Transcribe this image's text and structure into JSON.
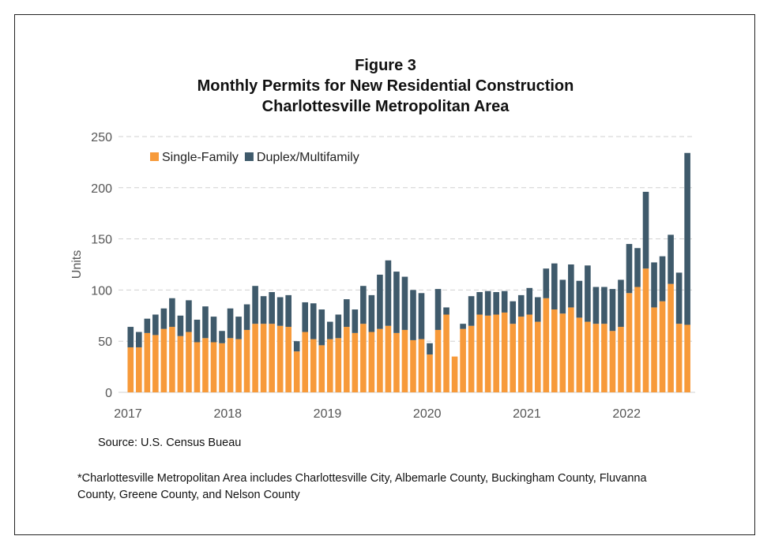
{
  "chart_data": {
    "type": "bar",
    "stacked": true,
    "title": "Figure 3",
    "subtitle": [
      "Monthly Permits for New Residential Construction",
      "Charlottesville Metropolitan Area"
    ],
    "ylabel": "Units",
    "ylim": [
      0,
      250
    ],
    "yticks": [
      0,
      50,
      100,
      150,
      200,
      250
    ],
    "xticks": [
      "2017",
      "2018",
      "2019",
      "2020",
      "2021",
      "2022"
    ],
    "grid": "horizontal dashed",
    "legend": "top-left",
    "start_month": "2017-01",
    "series": [
      {
        "name": "Single-Family",
        "color": "#F79A3A",
        "values": [
          44,
          44,
          58,
          56,
          62,
          64,
          55,
          59,
          49,
          53,
          49,
          48,
          53,
          52,
          61,
          67,
          67,
          67,
          65,
          64,
          40,
          59,
          52,
          46,
          52,
          53,
          64,
          58,
          67,
          59,
          62,
          65,
          58,
          61,
          51,
          52,
          37,
          61,
          76,
          35,
          62,
          65,
          76,
          75,
          76,
          78,
          67,
          74,
          76,
          69,
          92,
          81,
          77,
          83,
          73,
          69,
          67,
          67,
          60,
          64,
          97,
          103,
          121,
          83,
          89,
          106,
          67,
          66
        ]
      },
      {
        "name": "Duplex/Multifamily",
        "color": "#3F5A6B",
        "values": [
          20,
          15,
          14,
          20,
          20,
          28,
          20,
          31,
          22,
          31,
          25,
          12,
          29,
          22,
          25,
          37,
          27,
          31,
          28,
          31,
          10,
          29,
          35,
          35,
          17,
          23,
          27,
          23,
          37,
          36,
          53,
          64,
          60,
          52,
          49,
          45,
          11,
          40,
          7,
          0,
          5,
          29,
          22,
          24,
          22,
          21,
          22,
          21,
          26,
          24,
          29,
          45,
          33,
          42,
          36,
          55,
          36,
          36,
          41,
          46,
          48,
          38,
          75,
          44,
          44,
          48,
          50,
          168
        ]
      }
    ]
  },
  "source": "Source: U.S. Census Bueau",
  "footnote": "*Charlottesville Metropolitan Area includes Charlottesville City, Albemarle County, Buckingham County, Fluvanna County, Greene County, and Nelson County"
}
